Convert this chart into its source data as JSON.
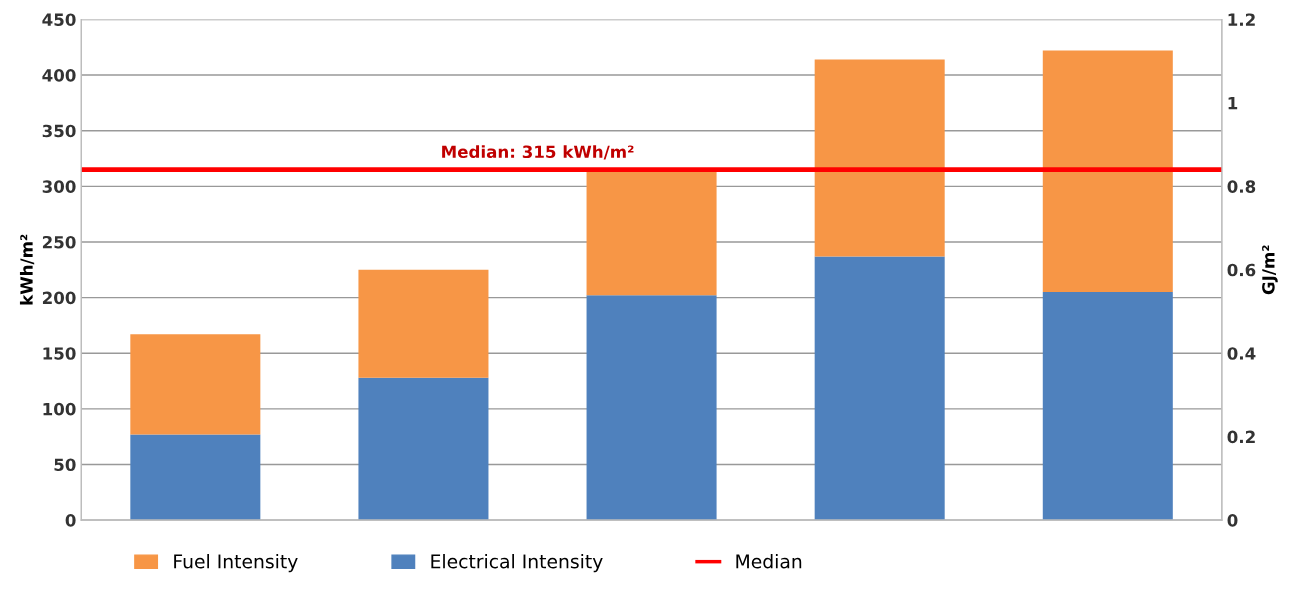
{
  "chart_data": {
    "type": "bar",
    "stacked": true,
    "categories": [
      null,
      null,
      null,
      null,
      null
    ],
    "series": [
      {
        "name": "Electrical Intensity",
        "color": "#4f81bd",
        "values": [
          77,
          128,
          202,
          237,
          205
        ]
      },
      {
        "name": "Fuel Intensity",
        "color": "#f79646",
        "values": [
          90,
          97,
          111,
          177,
          217
        ]
      }
    ],
    "ylabel": "kWh/m²",
    "y2label": "GJ/m²",
    "ylim": [
      0,
      450
    ],
    "yticks": [
      0,
      50,
      100,
      150,
      200,
      250,
      300,
      350,
      400,
      450
    ],
    "y2lim": [
      0,
      1.2
    ],
    "y2ticks": [
      0,
      {
        "value": 0.2,
        "label": "0.2"
      },
      {
        "value": 0.4,
        "label": "0.4"
      },
      {
        "value": 0.6,
        "label": "0.6"
      },
      {
        "value": 0.8,
        "label": "0.8"
      },
      1,
      {
        "value": 1.2,
        "label": "1.2"
      }
    ],
    "ref_lines": [
      {
        "axis": "y",
        "value": 315,
        "label": "Median",
        "color": "#ff0000",
        "line_style": "solid"
      }
    ],
    "annotations": [
      {
        "text": "Median: 315 kWh/m²",
        "y": 315
      }
    ],
    "grid": "y",
    "legend": "bottom"
  }
}
